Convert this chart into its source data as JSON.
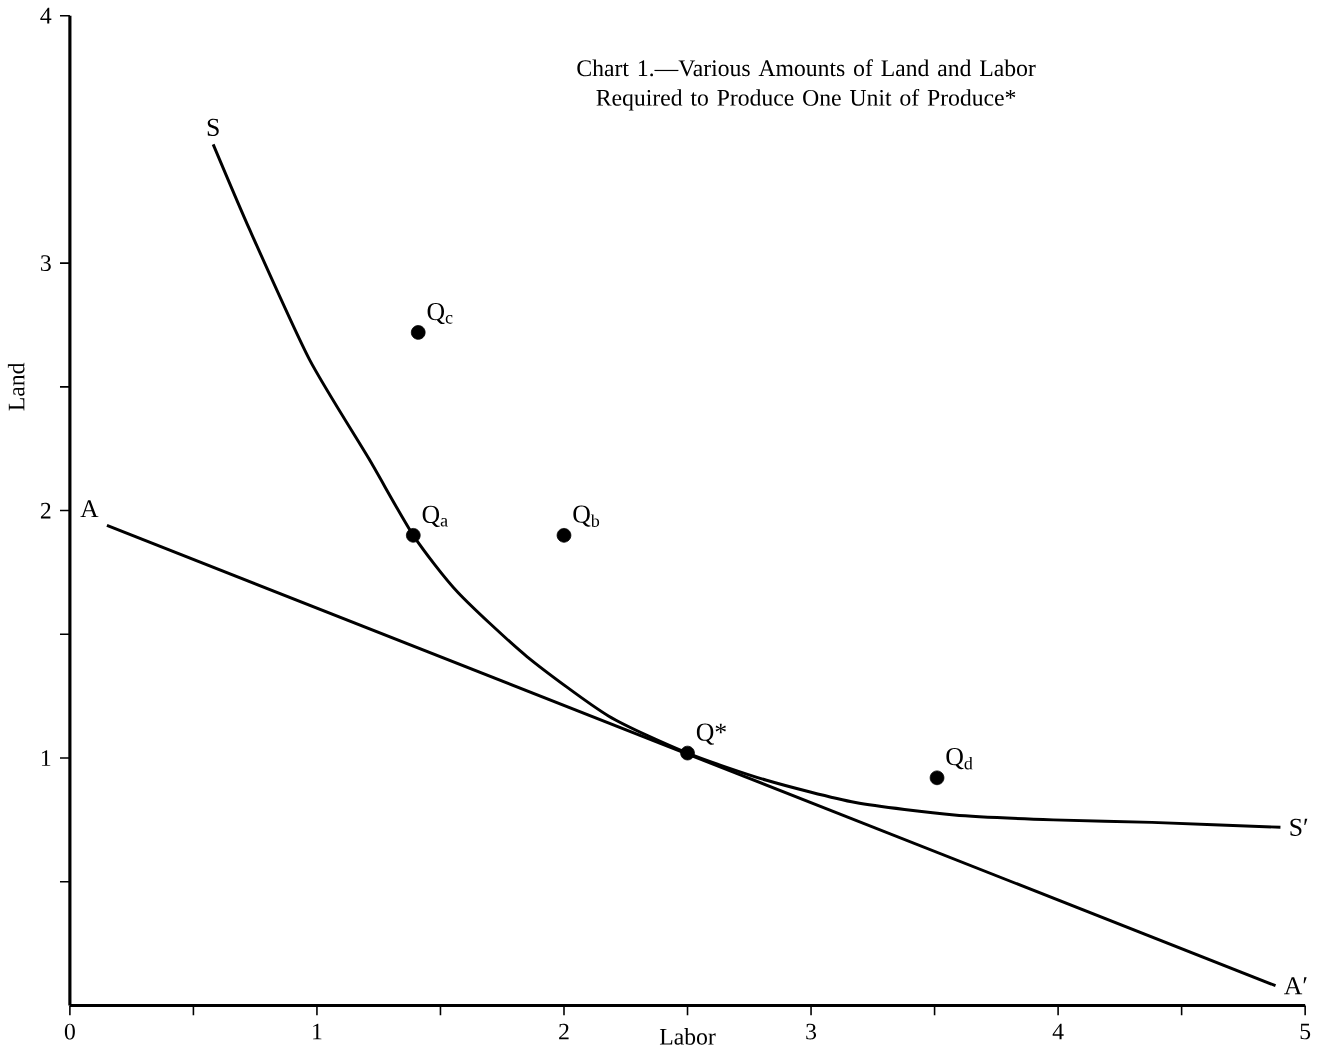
{
  "chart_data": {
    "type": "line",
    "title": "Chart 1.—Various Amounts of Land and Labor Required to Produce One Unit of Produce*",
    "xlabel": "Labor",
    "ylabel": "Land",
    "xlim": [
      0,
      5
    ],
    "ylim": [
      0,
      4
    ],
    "xticks": [
      0,
      {
        "value": 0.5,
        "label": null
      },
      1,
      {
        "value": 1.5,
        "label": null
      },
      2,
      {
        "value": 2.5,
        "label": null
      },
      3,
      {
        "value": 3.5,
        "label": null
      },
      4,
      {
        "value": 4.5,
        "label": null
      },
      5
    ],
    "yticks": [
      {
        "value": 0.5,
        "label": null
      },
      1,
      {
        "value": 1.5,
        "label": null
      },
      2,
      {
        "value": 2.5,
        "label": null
      },
      3,
      4
    ],
    "grid": false,
    "series": [
      {
        "color": "#000000",
        "marker": "none",
        "line_style": "solid",
        "x": [
          0.58,
          0.73,
          0.97,
          1.21,
          1.39,
          1.57,
          1.85,
          2.18,
          2.5,
          2.82,
          3.18,
          3.58,
          3.98,
          4.38,
          4.9
        ],
        "values": [
          3.48,
          3.13,
          2.61,
          2.21,
          1.9,
          1.67,
          1.41,
          1.17,
          1.02,
          0.91,
          0.82,
          0.77,
          0.75,
          0.74,
          0.72
        ]
      },
      {
        "color": "#000000",
        "marker": "none",
        "line_style": "solid",
        "x": [
          0.15,
          4.88
        ],
        "values": [
          1.94,
          0.08
        ]
      },
      {
        "type": "scatter",
        "color": "#000000",
        "marker": "circle",
        "x": [
          1.39,
          2.0,
          1.41,
          2.5,
          3.51
        ],
        "values": [
          1.9,
          1.9,
          2.72,
          1.02,
          0.92
        ]
      }
    ],
    "annotations": [
      {
        "text": "S",
        "x": 0.58,
        "y": 3.48
      },
      {
        "text": "S′",
        "x": 4.9,
        "y": 0.72
      },
      {
        "text": "A",
        "x": 0.15,
        "y": 1.94
      },
      {
        "text": "A′",
        "x": 4.88,
        "y": 0.08
      },
      {
        "text": "Q$_{a}$",
        "x": 1.39,
        "y": 1.9
      },
      {
        "text": "Q$_{b}$",
        "x": 2.0,
        "y": 1.9
      },
      {
        "text": "Q$_{c}$",
        "x": 1.41,
        "y": 2.72
      },
      {
        "text": "Q*",
        "x": 2.5,
        "y": 1.02
      },
      {
        "text": "Q$_{d}$",
        "x": 3.51,
        "y": 0.92
      }
    ]
  }
}
